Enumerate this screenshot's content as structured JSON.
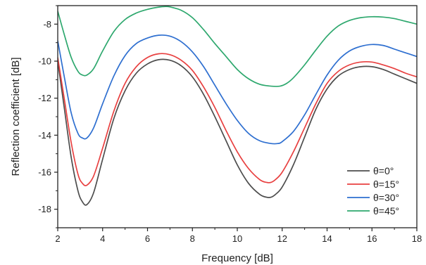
{
  "chart_data": {
    "type": "line",
    "title": "",
    "xlabel": "Frequency [dB]",
    "ylabel": "Reflection coefficient [dB]",
    "xlim": [
      2,
      18
    ],
    "ylim": [
      -19,
      -7
    ],
    "xticks": [
      2,
      4,
      6,
      8,
      10,
      12,
      14,
      16,
      18
    ],
    "yticks": [
      -18,
      -16,
      -14,
      -12,
      -10,
      -8
    ],
    "legend_position": "bottom-right",
    "grid": false,
    "series": [
      {
        "name": "θ=0°",
        "color": "#4d4d4d",
        "x": [
          2,
          2.3,
          2.6,
          2.9,
          3.1,
          3.3,
          3.6,
          4,
          4.5,
          5,
          5.5,
          6,
          6.5,
          7,
          7.5,
          8,
          8.5,
          9,
          9.5,
          10,
          10.5,
          11,
          11.3,
          11.5,
          11.7,
          12,
          12.5,
          13,
          13.5,
          14,
          14.5,
          15,
          15.5,
          16,
          16.5,
          17,
          17.5,
          18
        ],
        "y": [
          -10.0,
          -12.6,
          -15.2,
          -17.0,
          -17.6,
          -17.75,
          -17.1,
          -15.3,
          -13.1,
          -11.6,
          -10.65,
          -10.15,
          -9.92,
          -9.95,
          -10.25,
          -10.85,
          -11.8,
          -13.0,
          -14.3,
          -15.6,
          -16.6,
          -17.2,
          -17.35,
          -17.35,
          -17.2,
          -16.8,
          -15.6,
          -14.1,
          -12.6,
          -11.5,
          -10.8,
          -10.45,
          -10.3,
          -10.3,
          -10.45,
          -10.7,
          -10.95,
          -11.2
        ]
      },
      {
        "name": "θ=15°",
        "color": "#e84040",
        "x": [
          2,
          2.3,
          2.6,
          2.9,
          3.1,
          3.3,
          3.6,
          4,
          4.5,
          5,
          5.5,
          6,
          6.5,
          7,
          7.5,
          8,
          8.5,
          9,
          9.5,
          10,
          10.5,
          11,
          11.3,
          11.5,
          11.7,
          12,
          12.5,
          13,
          13.5,
          14,
          14.5,
          15,
          15.5,
          16,
          16.5,
          17,
          17.5,
          18
        ],
        "y": [
          -9.8,
          -12.1,
          -14.4,
          -16.1,
          -16.6,
          -16.7,
          -16.2,
          -14.7,
          -12.7,
          -11.2,
          -10.3,
          -9.8,
          -9.6,
          -9.65,
          -9.95,
          -10.5,
          -11.4,
          -12.5,
          -13.75,
          -14.9,
          -15.8,
          -16.4,
          -16.55,
          -16.55,
          -16.4,
          -16.0,
          -14.9,
          -13.6,
          -12.3,
          -11.2,
          -10.55,
          -10.2,
          -10.05,
          -10.05,
          -10.2,
          -10.4,
          -10.65,
          -10.85
        ]
      },
      {
        "name": "θ=30°",
        "color": "#2e6fd0",
        "x": [
          2,
          2.3,
          2.6,
          2.9,
          3.1,
          3.3,
          3.6,
          4,
          4.5,
          5,
          5.5,
          6,
          6.5,
          7,
          7.5,
          8,
          8.5,
          9,
          9.5,
          10,
          10.5,
          11,
          11.5,
          11.8,
          12,
          12.5,
          13,
          13.5,
          14,
          14.5,
          15,
          15.5,
          16,
          16.5,
          17,
          17.5,
          18
        ],
        "y": [
          -8.9,
          -10.9,
          -12.8,
          -13.9,
          -14.15,
          -14.15,
          -13.6,
          -12.3,
          -10.8,
          -9.7,
          -9.05,
          -8.75,
          -8.6,
          -8.65,
          -8.95,
          -9.5,
          -10.3,
          -11.3,
          -12.3,
          -13.2,
          -13.9,
          -14.3,
          -14.45,
          -14.45,
          -14.35,
          -13.8,
          -12.9,
          -11.8,
          -10.75,
          -9.95,
          -9.45,
          -9.2,
          -9.1,
          -9.15,
          -9.35,
          -9.55,
          -9.75
        ]
      },
      {
        "name": "θ=45°",
        "color": "#2ea86e",
        "x": [
          2,
          2.3,
          2.6,
          2.9,
          3.1,
          3.3,
          3.6,
          4,
          4.5,
          5,
          5.5,
          6,
          6.5,
          6.8,
          7,
          7.5,
          8,
          8.5,
          9,
          9.5,
          10,
          10.5,
          11,
          11.5,
          11.9,
          12.2,
          12.5,
          13,
          13.5,
          14,
          14.5,
          15,
          15.5,
          16,
          16.5,
          17,
          17.5,
          18
        ],
        "y": [
          -7.3,
          -8.6,
          -9.8,
          -10.55,
          -10.75,
          -10.75,
          -10.4,
          -9.45,
          -8.4,
          -7.75,
          -7.4,
          -7.2,
          -7.08,
          -7.05,
          -7.07,
          -7.25,
          -7.65,
          -8.3,
          -9.05,
          -9.75,
          -10.45,
          -10.95,
          -11.25,
          -11.35,
          -11.35,
          -11.2,
          -10.9,
          -10.2,
          -9.4,
          -8.65,
          -8.1,
          -7.8,
          -7.65,
          -7.6,
          -7.62,
          -7.7,
          -7.85,
          -8.0
        ]
      }
    ]
  }
}
